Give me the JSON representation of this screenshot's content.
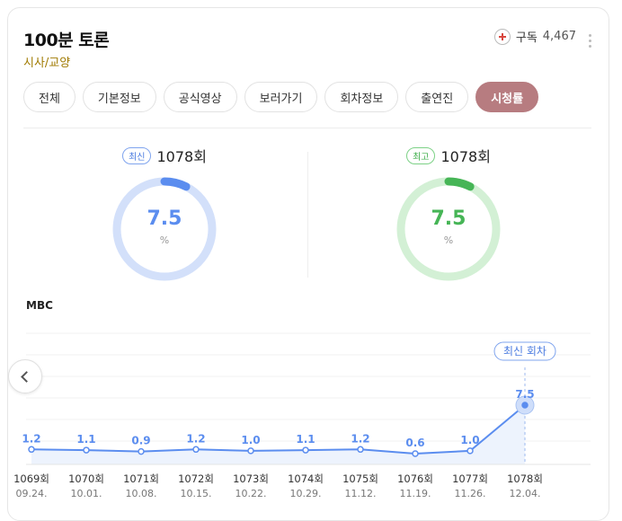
{
  "header": {
    "title": "100분 토론",
    "subtitle": "시사/교양",
    "subscribe_label": "구독",
    "subscribe_count": "4,467"
  },
  "tabs": [
    {
      "label": "전체",
      "active": false
    },
    {
      "label": "기본정보",
      "active": false
    },
    {
      "label": "공식영상",
      "active": false
    },
    {
      "label": "보러가기",
      "active": false
    },
    {
      "label": "회차정보",
      "active": false
    },
    {
      "label": "출연진",
      "active": false
    },
    {
      "label": "시청률",
      "active": true
    }
  ],
  "latest": {
    "badge": "최신",
    "episode": "1078회",
    "value": "7.5",
    "unit": "%",
    "fraction": 0.075,
    "color": "#5b8def",
    "track": "#d3e0fa"
  },
  "best": {
    "badge": "최고",
    "episode": "1078회",
    "value": "7.5",
    "unit": "%",
    "fraction": 0.075,
    "color": "#46b556",
    "track": "#d3f0d5"
  },
  "network": "MBC",
  "chart_data": {
    "type": "line",
    "episodes": [
      "1069회",
      "1070회",
      "1071회",
      "1072회",
      "1073회",
      "1074회",
      "1075회",
      "1076회",
      "1077회",
      "1078회"
    ],
    "dates": [
      "09.24.",
      "10.01.",
      "10.08.",
      "10.15.",
      "10.22.",
      "10.29.",
      "11.12.",
      "11.19.",
      "11.26.",
      "12.04."
    ],
    "values": [
      1.2,
      1.1,
      0.9,
      1.2,
      1.0,
      1.1,
      1.2,
      0.6,
      1.0,
      7.5
    ],
    "value_labels": [
      "1.2",
      "1.1",
      "0.9",
      "1.2",
      "1.0",
      "1.1",
      "1.2",
      "0.6",
      "1.0",
      "7.5"
    ],
    "highlight_label": "최신 회차",
    "color": "#5b8def"
  }
}
